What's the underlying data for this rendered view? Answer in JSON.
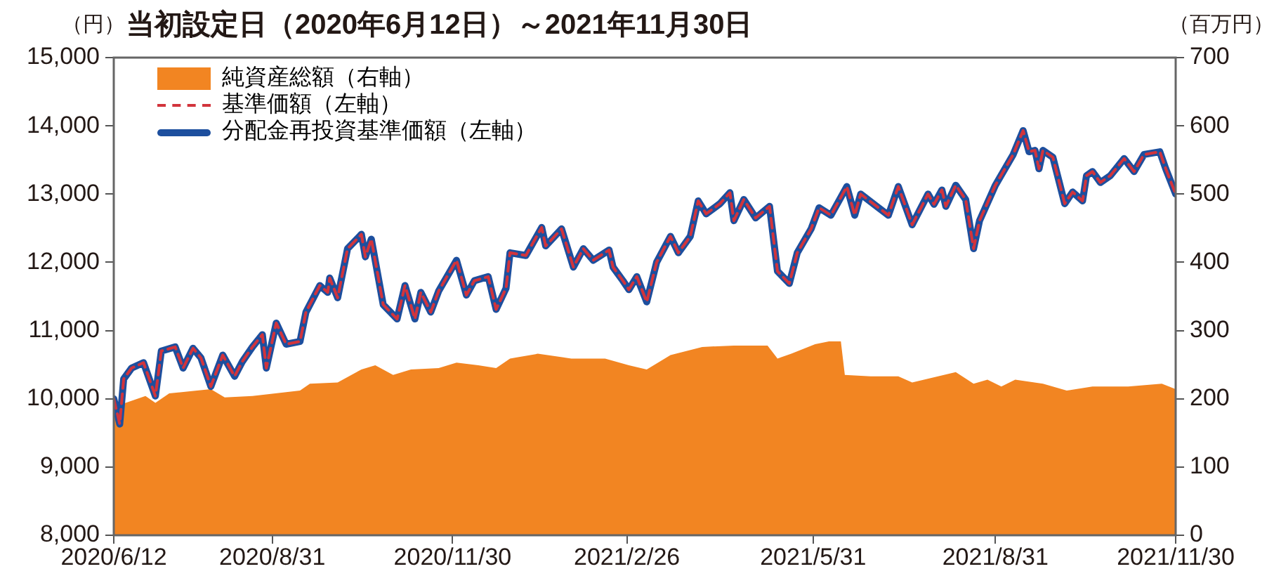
{
  "chart_data": {
    "type": "line",
    "title": "当初設定日（2020年6月12日）～2021年11月30日",
    "ylabel": "（円）",
    "y2label": "（百万円）",
    "xlim": [
      "2020-06-12",
      "2021-11-30"
    ],
    "xticks": [
      {
        "value": "2020-06-12",
        "label": "2020/6/12"
      },
      {
        "value": "2020-08-31",
        "label": "2020/8/31"
      },
      {
        "value": "2020-11-30",
        "label": "2020/11/30"
      },
      {
        "value": "2021-02-26",
        "label": "2021/2/26"
      },
      {
        "value": "2021-05-31",
        "label": "2021/5/31"
      },
      {
        "value": "2021-08-31",
        "label": "2021/8/31"
      },
      {
        "value": "2021-11-30",
        "label": "2021/11/30"
      }
    ],
    "ylim": [
      8000,
      15000
    ],
    "yticks": [
      {
        "value": 8000,
        "label": "8,000"
      },
      {
        "value": 9000,
        "label": "9,000"
      },
      {
        "value": 10000,
        "label": "10,000"
      },
      {
        "value": 11000,
        "label": "11,000"
      },
      {
        "value": 12000,
        "label": "12,000"
      },
      {
        "value": 13000,
        "label": "13,000"
      },
      {
        "value": 14000,
        "label": "14,000"
      },
      {
        "value": 15000,
        "label": "15,000"
      }
    ],
    "y2lim": [
      0,
      700
    ],
    "y2ticks": [
      0,
      100,
      200,
      300,
      400,
      500,
      600,
      700
    ],
    "grid": false,
    "legend": "top left",
    "series": [
      {
        "name": "純資産総額（右軸）",
        "type": "area",
        "axis": "y2",
        "color": "#f28522",
        "x": [
          "2020-06-12",
          "2020-06-14",
          "2020-06-18",
          "2020-06-28",
          "2020-07-03",
          "2020-07-10",
          "2020-07-24",
          "2020-07-31",
          "2020-08-07",
          "2020-08-21",
          "2020-09-14",
          "2020-09-19",
          "2020-10-03",
          "2020-10-15",
          "2020-10-22",
          "2020-10-31",
          "2020-11-09",
          "2020-11-23",
          "2020-12-02",
          "2020-12-13",
          "2020-12-22",
          "2020-12-29",
          "2021-01-12",
          "2021-01-29",
          "2021-02-15",
          "2021-02-27",
          "2021-03-08",
          "2021-03-20",
          "2021-04-05",
          "2021-04-21",
          "2021-05-08",
          "2021-05-13",
          "2021-05-20",
          "2021-06-01",
          "2021-06-08",
          "2021-06-14",
          "2021-06-16",
          "2021-06-29",
          "2021-07-13",
          "2021-07-20",
          "2021-08-11",
          "2021-08-20",
          "2021-08-27",
          "2021-09-03",
          "2021-09-10",
          "2021-09-24",
          "2021-10-06",
          "2021-10-19",
          "2021-11-06",
          "2021-11-23",
          "2021-11-30"
        ],
        "values": [
          167,
          190,
          194,
          204,
          194,
          208,
          212,
          214,
          202,
          204,
          212,
          222,
          224,
          243,
          249,
          235,
          243,
          245,
          253,
          249,
          245,
          259,
          266,
          259,
          259,
          249,
          243,
          264,
          276,
          278,
          278,
          259,
          266,
          280,
          284,
          284,
          235,
          233,
          233,
          224,
          239,
          222,
          228,
          218,
          228,
          222,
          212,
          218,
          218,
          222,
          214
        ]
      },
      {
        "name": "基準価額（左軸）",
        "type": "line",
        "color": "#d2343c",
        "line_style": "dashed",
        "x": [
          "2020-06-12",
          "2020-06-15",
          "2020-06-17",
          "2020-06-21",
          "2020-06-27",
          "2020-07-03",
          "2020-07-06",
          "2020-07-13",
          "2020-07-17",
          "2020-07-22",
          "2020-07-26",
          "2020-07-31",
          "2020-08-06",
          "2020-08-12",
          "2020-08-16",
          "2020-08-21",
          "2020-08-26",
          "2020-08-28",
          "2020-09-02",
          "2020-09-07",
          "2020-09-14",
          "2020-09-17",
          "2020-09-24",
          "2020-09-28",
          "2020-09-29",
          "2020-10-03",
          "2020-10-08",
          "2020-10-15",
          "2020-10-17",
          "2020-10-20",
          "2020-10-26",
          "2020-11-02",
          "2020-11-06",
          "2020-11-11",
          "2020-11-14",
          "2020-11-19",
          "2020-11-23",
          "2020-12-02",
          "2020-12-07",
          "2020-12-11",
          "2020-12-18",
          "2020-12-22",
          "2020-12-27",
          "2020-12-29",
          "2021-01-06",
          "2021-01-14",
          "2021-01-16",
          "2021-01-24",
          "2021-01-30",
          "2021-02-04",
          "2021-02-09",
          "2021-02-17",
          "2021-02-19",
          "2021-02-24",
          "2021-02-27",
          "2021-03-03",
          "2021-03-08",
          "2021-03-13",
          "2021-03-20",
          "2021-03-24",
          "2021-03-30",
          "2021-04-03",
          "2021-04-07",
          "2021-04-14",
          "2021-04-19",
          "2021-04-21",
          "2021-04-26",
          "2021-05-02",
          "2021-05-09",
          "2021-05-13",
          "2021-05-19",
          "2021-05-23",
          "2021-05-30",
          "2021-06-03",
          "2021-06-09",
          "2021-06-17",
          "2021-06-21",
          "2021-06-24",
          "2021-07-03",
          "2021-07-08",
          "2021-07-13",
          "2021-07-20",
          "2021-07-28",
          "2021-07-31",
          "2021-08-04",
          "2021-08-06",
          "2021-08-11",
          "2021-08-16",
          "2021-08-20",
          "2021-08-23",
          "2021-08-31",
          "2021-09-09",
          "2021-09-14",
          "2021-09-17",
          "2021-09-20",
          "2021-09-22",
          "2021-09-24",
          "2021-09-29",
          "2021-10-05",
          "2021-10-09",
          "2021-10-14",
          "2021-10-16",
          "2021-10-19",
          "2021-10-23",
          "2021-10-28",
          "2021-11-04",
          "2021-11-09",
          "2021-11-14",
          "2021-11-22",
          "2021-11-25",
          "2021-11-30"
        ],
        "values": [
          10000,
          9630,
          10290,
          10450,
          10530,
          10040,
          10700,
          10760,
          10450,
          10740,
          10600,
          10180,
          10640,
          10330,
          10550,
          10760,
          10940,
          10450,
          11110,
          10800,
          10840,
          11270,
          11660,
          11560,
          11770,
          11480,
          12200,
          12410,
          12080,
          12340,
          11380,
          11170,
          11660,
          11170,
          11560,
          11270,
          11580,
          12030,
          11520,
          11730,
          11790,
          11310,
          11620,
          12140,
          12100,
          12510,
          12240,
          12490,
          11930,
          12200,
          12030,
          12180,
          11930,
          11730,
          11600,
          11790,
          11420,
          12000,
          12380,
          12140,
          12380,
          12900,
          12710,
          12860,
          13020,
          12610,
          12920,
          12650,
          12820,
          11870,
          11690,
          12140,
          12490,
          12800,
          12690,
          13110,
          12690,
          13000,
          12800,
          12690,
          13110,
          12550,
          13000,
          12850,
          13060,
          12820,
          13130,
          12920,
          12200,
          12610,
          13130,
          13580,
          13930,
          13620,
          13640,
          13370,
          13640,
          13540,
          12860,
          13030,
          12900,
          13270,
          13330,
          13170,
          13270,
          13520,
          13330,
          13580,
          13620,
          13370,
          13000
        ]
      },
      {
        "name": "分配金再投資基準価額（左軸）",
        "type": "line",
        "color": "#1d4f9e",
        "line_style": "solid",
        "x": [
          "2020-06-12",
          "2020-06-15",
          "2020-06-17",
          "2020-06-21",
          "2020-06-27",
          "2020-07-03",
          "2020-07-06",
          "2020-07-13",
          "2020-07-17",
          "2020-07-22",
          "2020-07-26",
          "2020-07-31",
          "2020-08-06",
          "2020-08-12",
          "2020-08-16",
          "2020-08-21",
          "2020-08-26",
          "2020-08-28",
          "2020-09-02",
          "2020-09-07",
          "2020-09-14",
          "2020-09-17",
          "2020-09-24",
          "2020-09-28",
          "2020-09-29",
          "2020-10-03",
          "2020-10-08",
          "2020-10-15",
          "2020-10-17",
          "2020-10-20",
          "2020-10-26",
          "2020-11-02",
          "2020-11-06",
          "2020-11-11",
          "2020-11-14",
          "2020-11-19",
          "2020-11-23",
          "2020-12-02",
          "2020-12-07",
          "2020-12-11",
          "2020-12-18",
          "2020-12-22",
          "2020-12-27",
          "2020-12-29",
          "2021-01-06",
          "2021-01-14",
          "2021-01-16",
          "2021-01-24",
          "2021-01-30",
          "2021-02-04",
          "2021-02-09",
          "2021-02-17",
          "2021-02-19",
          "2021-02-24",
          "2021-02-27",
          "2021-03-03",
          "2021-03-08",
          "2021-03-13",
          "2021-03-20",
          "2021-03-24",
          "2021-03-30",
          "2021-04-03",
          "2021-04-07",
          "2021-04-14",
          "2021-04-19",
          "2021-04-21",
          "2021-04-26",
          "2021-05-02",
          "2021-05-09",
          "2021-05-13",
          "2021-05-19",
          "2021-05-23",
          "2021-05-30",
          "2021-06-03",
          "2021-06-09",
          "2021-06-17",
          "2021-06-21",
          "2021-06-24",
          "2021-07-03",
          "2021-07-08",
          "2021-07-13",
          "2021-07-20",
          "2021-07-28",
          "2021-07-31",
          "2021-08-04",
          "2021-08-06",
          "2021-08-11",
          "2021-08-16",
          "2021-08-20",
          "2021-08-23",
          "2021-08-31",
          "2021-09-09",
          "2021-09-14",
          "2021-09-17",
          "2021-09-20",
          "2021-09-22",
          "2021-09-24",
          "2021-09-29",
          "2021-10-05",
          "2021-10-09",
          "2021-10-14",
          "2021-10-16",
          "2021-10-19",
          "2021-10-23",
          "2021-10-28",
          "2021-11-04",
          "2021-11-09",
          "2021-11-14",
          "2021-11-22",
          "2021-11-25",
          "2021-11-30"
        ],
        "values": [
          10000,
          9630,
          10290,
          10450,
          10530,
          10040,
          10700,
          10760,
          10450,
          10740,
          10600,
          10180,
          10640,
          10330,
          10550,
          10760,
          10940,
          10450,
          11110,
          10800,
          10840,
          11270,
          11660,
          11560,
          11770,
          11480,
          12200,
          12410,
          12080,
          12340,
          11380,
          11170,
          11660,
          11170,
          11560,
          11270,
          11580,
          12030,
          11520,
          11730,
          11790,
          11310,
          11620,
          12140,
          12100,
          12510,
          12240,
          12490,
          11930,
          12200,
          12030,
          12180,
          11930,
          11730,
          11600,
          11790,
          11420,
          12000,
          12380,
          12140,
          12380,
          12900,
          12710,
          12860,
          13020,
          12610,
          12920,
          12650,
          12820,
          11870,
          11690,
          12140,
          12490,
          12800,
          12690,
          13110,
          12690,
          13000,
          12800,
          12690,
          13110,
          12550,
          13000,
          12850,
          13060,
          12820,
          13130,
          12920,
          12200,
          12610,
          13130,
          13580,
          13930,
          13620,
          13640,
          13370,
          13640,
          13540,
          12860,
          13030,
          12900,
          13270,
          13330,
          13170,
          13270,
          13520,
          13330,
          13580,
          13620,
          13370,
          13000
        ]
      }
    ]
  }
}
